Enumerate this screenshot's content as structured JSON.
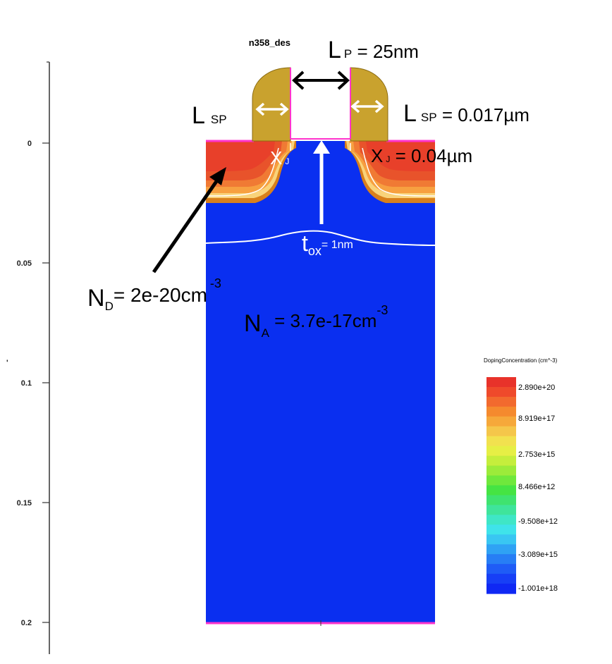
{
  "figure": {
    "title": "n358_des",
    "y_axis": {
      "ticks": [
        "0",
        "0.05",
        "0.1",
        "0.15",
        "0.2"
      ],
      "stray_label": "'"
    },
    "annotations": {
      "lp": {
        "main": "L",
        "sub": "P",
        "value": " = 25nm"
      },
      "lsp_left": {
        "main": "L",
        "sub": "SP"
      },
      "lsp_right": {
        "main": "L",
        "sub": "SP",
        "value": " = 0.017µm"
      },
      "xj_left": {
        "main": "X",
        "sub": "J"
      },
      "xj_right": {
        "main": "X",
        "sub": "J",
        "value": " = 0.04µm"
      },
      "tox": {
        "main": "t",
        "sub": "ox",
        "value": "= 1nm"
      },
      "nd": {
        "main": "N",
        "sub": "D",
        "value": "= 2e-20cm",
        "sup": "-3"
      },
      "na": {
        "main": "N",
        "sub": "A",
        "value": " = 3.7e-17cm",
        "sup": "-3"
      }
    },
    "legend": {
      "title": "DopingConcentration (cm^-3)",
      "labels": [
        "2.890e+20",
        "8.919e+17",
        "2.753e+15",
        "8.466e+12",
        "-9.508e+12",
        "-3.089e+15",
        "-1.001e+18"
      ]
    },
    "colors": {
      "substrate": "#0a2ff0",
      "gate_spacer": "#c9a22e",
      "contact": "#ff33cc",
      "doping_high": "#e8402a",
      "doping_mid": "#f58a2e",
      "doping_low": "#f9c870",
      "contour": "#ffffff"
    }
  }
}
